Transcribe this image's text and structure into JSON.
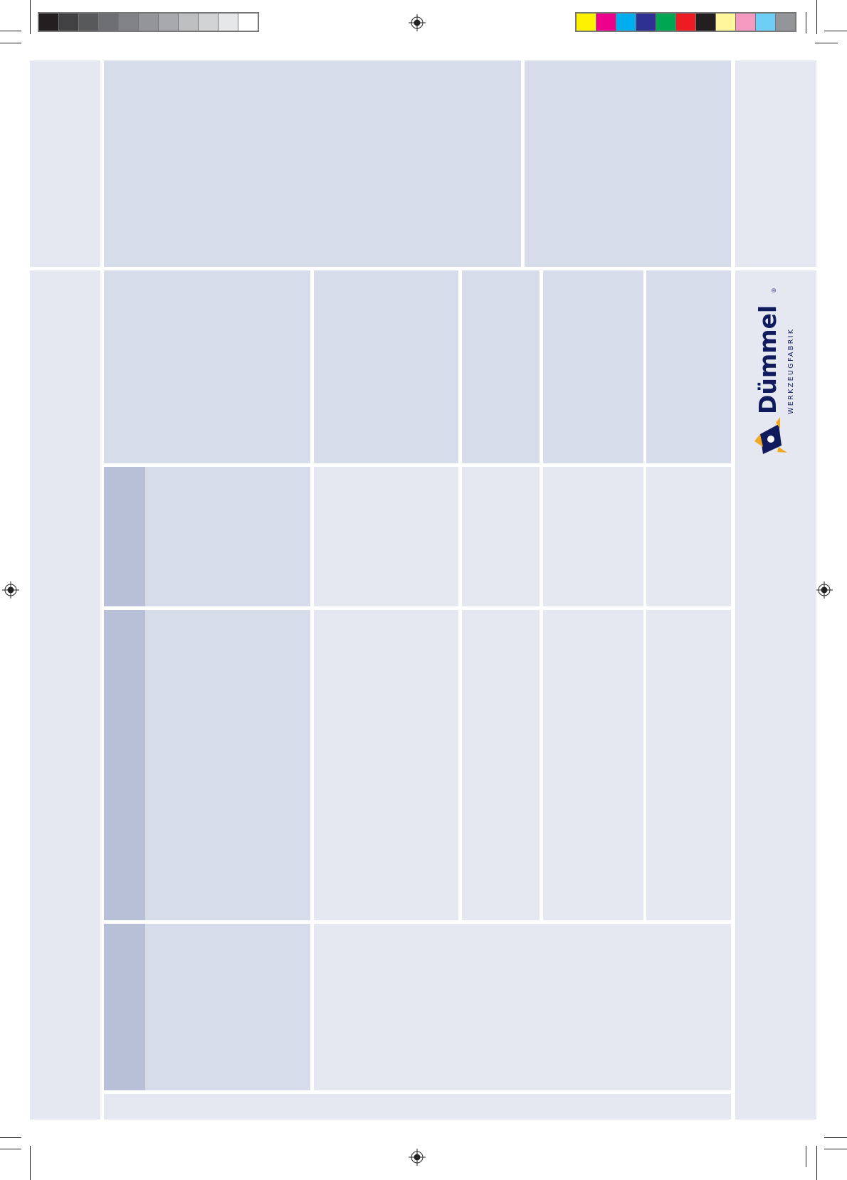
{
  "color_bars": {
    "grayscale": [
      "#231f20",
      "#414042",
      "#58595b",
      "#6d6e71",
      "#808285",
      "#939598",
      "#a7a9ac",
      "#bcbec0",
      "#d1d3d4",
      "#e6e7e8",
      "#ffffff"
    ],
    "process": [
      "#fff200",
      "#ec008c",
      "#00aeef",
      "#2e3192",
      "#00a651",
      "#ed1c24",
      "#231f20",
      "#fff799",
      "#f49ac1",
      "#6dcff6",
      "#939598"
    ]
  },
  "colors": {
    "light": "#e5e7f1",
    "mid": "#d6dcea",
    "dark": "#b8c0d8",
    "brand_navy": "#0f1b5c",
    "brand_orange": "#f0a91e"
  },
  "logo": {
    "name": "Dümmel",
    "registered": "®",
    "tagline": "WERKZEUGFABRIK"
  }
}
